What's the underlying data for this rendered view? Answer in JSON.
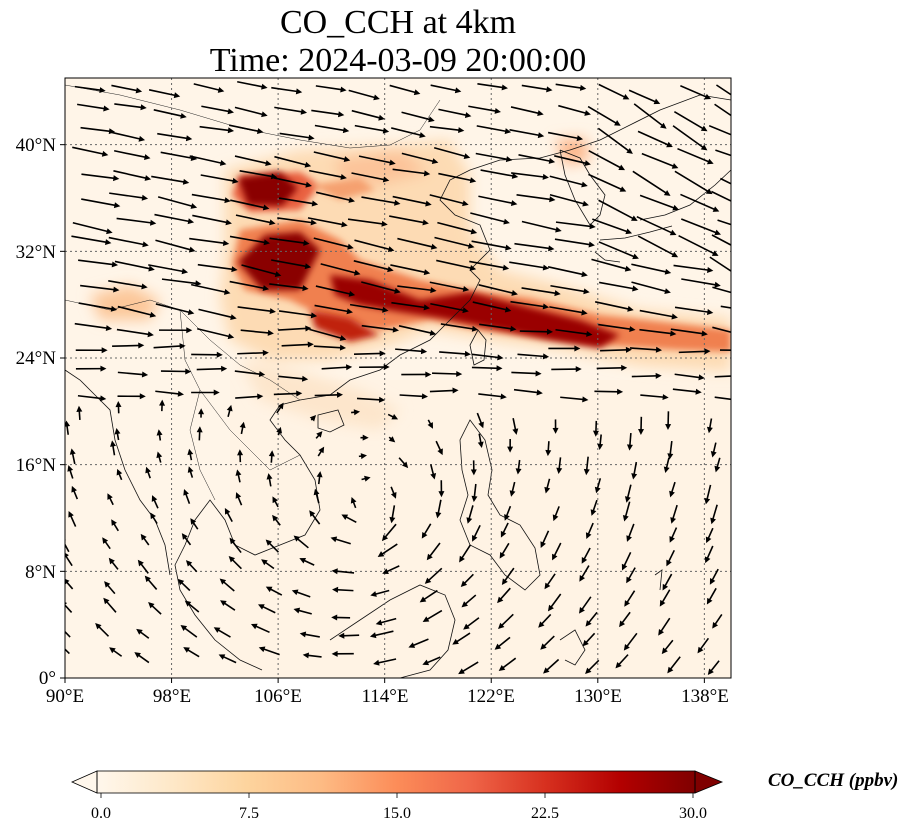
{
  "title": {
    "line1": "CO_CCH at 4km",
    "line2": "Time: 2024-03-09 20:00:00"
  },
  "map": {
    "lon_range": [
      90,
      140
    ],
    "lat_range": [
      0,
      45
    ],
    "lon_ticks": [
      "90°E",
      "98°E",
      "106°E",
      "114°E",
      "122°E",
      "130°E",
      "138°E"
    ],
    "lat_ticks": [
      "0°",
      "8°N",
      "16°N",
      "24°N",
      "32°N",
      "40°N"
    ],
    "grid": "dotted",
    "coastlines": true,
    "wind_vectors": true
  },
  "colorbar": {
    "label": "CO_CCH (ppbv)",
    "colormap": "OrRd",
    "ticks": [
      "0.0",
      "7.5",
      "15.0",
      "22.5",
      "30.0"
    ],
    "range": [
      0,
      30
    ],
    "extend": "both",
    "colors": [
      "#fff7ec",
      "#fee8c8",
      "#fdd49e",
      "#fdbb84",
      "#fc8d59",
      "#ef6548",
      "#d7301f",
      "#b30000",
      "#7f0000"
    ]
  }
}
